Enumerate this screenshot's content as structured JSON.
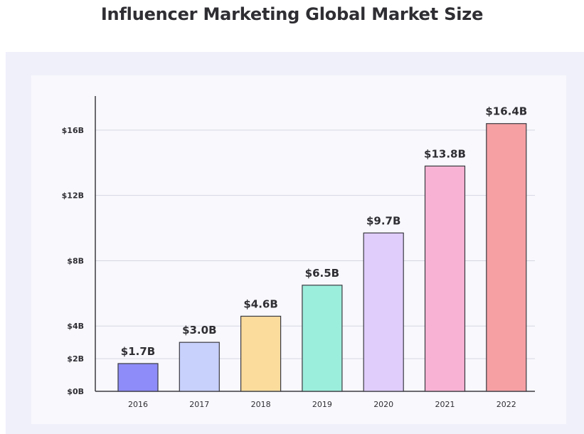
{
  "chart_data": {
    "type": "bar",
    "title": "Influencer Marketing Global Market Size",
    "xlabel": "",
    "ylabel": "",
    "categories": [
      "2016",
      "2017",
      "2018",
      "2019",
      "2020",
      "2021",
      "2022"
    ],
    "values": [
      1.7,
      3.0,
      4.6,
      6.5,
      9.7,
      13.8,
      16.4
    ],
    "value_labels": [
      "$1.7B",
      "$3.0B",
      "$4.6B",
      "$6.5B",
      "$9.7B",
      "$13.8B",
      "$16.4B"
    ],
    "bar_colors": [
      "#8e8cf8",
      "#c8d1fb",
      "#fbdc9d",
      "#9ceedc",
      "#e0cdfc",
      "#f8b3d4",
      "#f6a0a4"
    ],
    "yticks": [
      0,
      2,
      4,
      8,
      12,
      16
    ],
    "ytick_labels": [
      "$0B",
      "$2B",
      "$4B",
      "$8B",
      "$12B",
      "$16B"
    ],
    "ylim": [
      0,
      18
    ],
    "grid": true,
    "legend": "none"
  }
}
